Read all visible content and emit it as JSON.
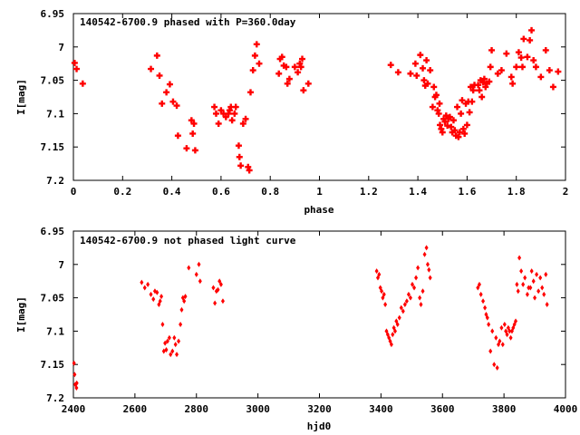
{
  "chart_data": [
    {
      "type": "scatter",
      "title": "140542-6700.9 phased with P=360.0day",
      "xlabel": "phase",
      "ylabel": "I[mag]",
      "xlim": [
        0,
        2
      ],
      "ylim": [
        7.2,
        6.95
      ],
      "y_inverted": true,
      "x_ticks": [
        "0",
        "0.2",
        "0.4",
        "0.6",
        "0.8",
        "1",
        "1.2",
        "1.4",
        "1.6",
        "1.8",
        "2"
      ],
      "x_tick_values": [
        0,
        0.2,
        0.4,
        0.6,
        0.8,
        1.0,
        1.2,
        1.4,
        1.6,
        1.8,
        2.0
      ],
      "y_ticks": [
        "6.95",
        "7",
        "7.05",
        "7.1",
        "7.15",
        "7.2"
      ],
      "y_tick_values": [
        6.95,
        7.0,
        7.05,
        7.1,
        7.15,
        7.2
      ],
      "marker": "star",
      "color": "#ff0000",
      "grid": false,
      "points": [
        [
          0.005,
          7.024
        ],
        [
          0.013,
          7.033
        ],
        [
          0.038,
          7.055
        ],
        [
          0.315,
          7.033
        ],
        [
          0.34,
          7.013
        ],
        [
          0.35,
          7.043
        ],
        [
          0.36,
          7.085
        ],
        [
          0.378,
          7.068
        ],
        [
          0.392,
          7.056
        ],
        [
          0.405,
          7.082
        ],
        [
          0.42,
          7.088
        ],
        [
          0.425,
          7.133
        ],
        [
          0.46,
          7.152
        ],
        [
          0.48,
          7.11
        ],
        [
          0.485,
          7.13
        ],
        [
          0.49,
          7.115
        ],
        [
          0.495,
          7.155
        ],
        [
          0.573,
          7.09
        ],
        [
          0.58,
          7.1
        ],
        [
          0.59,
          7.115
        ],
        [
          0.6,
          7.095
        ],
        [
          0.61,
          7.1
        ],
        [
          0.62,
          7.105
        ],
        [
          0.63,
          7.1
        ],
        [
          0.635,
          7.095
        ],
        [
          0.64,
          7.09
        ],
        [
          0.645,
          7.11
        ],
        [
          0.655,
          7.1
        ],
        [
          0.66,
          7.09
        ],
        [
          0.672,
          7.148
        ],
        [
          0.675,
          7.165
        ],
        [
          0.68,
          7.178
        ],
        [
          0.69,
          7.115
        ],
        [
          0.7,
          7.108
        ],
        [
          0.71,
          7.18
        ],
        [
          0.715,
          7.185
        ],
        [
          0.72,
          7.068
        ],
        [
          0.73,
          7.035
        ],
        [
          0.738,
          7.013
        ],
        [
          0.745,
          6.996
        ],
        [
          0.755,
          7.025
        ],
        [
          0.835,
          7.04
        ],
        [
          0.84,
          7.018
        ],
        [
          0.848,
          7.015
        ],
        [
          0.855,
          7.028
        ],
        [
          0.865,
          7.03
        ],
        [
          0.87,
          7.055
        ],
        [
          0.878,
          7.048
        ],
        [
          0.9,
          7.03
        ],
        [
          0.912,
          7.038
        ],
        [
          0.92,
          7.025
        ],
        [
          0.925,
          7.03
        ],
        [
          0.93,
          7.018
        ],
        [
          0.935,
          7.065
        ],
        [
          0.955,
          7.055
        ],
        [
          1.29,
          7.027
        ],
        [
          1.32,
          7.038
        ],
        [
          1.37,
          7.04
        ],
        [
          1.39,
          7.025
        ],
        [
          1.395,
          7.043
        ],
        [
          1.41,
          7.012
        ],
        [
          1.42,
          7.032
        ],
        [
          1.425,
          7.05
        ],
        [
          1.43,
          7.058
        ],
        [
          1.435,
          7.02
        ],
        [
          1.44,
          7.055
        ],
        [
          1.45,
          7.035
        ],
        [
          1.46,
          7.09
        ],
        [
          1.465,
          7.06
        ],
        [
          1.47,
          7.075
        ],
        [
          1.475,
          7.072
        ],
        [
          1.48,
          7.095
        ],
        [
          1.485,
          7.1
        ],
        [
          1.488,
          7.085
        ],
        [
          1.49,
          7.117
        ],
        [
          1.495,
          7.123
        ],
        [
          1.5,
          7.128
        ],
        [
          1.505,
          7.108
        ],
        [
          1.51,
          7.112
        ],
        [
          1.515,
          7.103
        ],
        [
          1.52,
          7.118
        ],
        [
          1.525,
          7.108
        ],
        [
          1.53,
          7.105
        ],
        [
          1.535,
          7.12
        ],
        [
          1.54,
          7.128
        ],
        [
          1.545,
          7.11
        ],
        [
          1.55,
          7.125
        ],
        [
          1.555,
          7.133
        ],
        [
          1.56,
          7.09
        ],
        [
          1.565,
          7.135
        ],
        [
          1.57,
          7.128
        ],
        [
          1.575,
          7.1
        ],
        [
          1.58,
          7.08
        ],
        [
          1.585,
          7.123
        ],
        [
          1.59,
          7.13
        ],
        [
          1.595,
          7.085
        ],
        [
          1.6,
          7.117
        ],
        [
          1.605,
          7.082
        ],
        [
          1.61,
          7.098
        ],
        [
          1.615,
          7.06
        ],
        [
          1.62,
          7.082
        ],
        [
          1.625,
          7.065
        ],
        [
          1.63,
          7.057
        ],
        [
          1.645,
          7.057
        ],
        [
          1.65,
          7.065
        ],
        [
          1.655,
          7.05
        ],
        [
          1.66,
          7.075
        ],
        [
          1.665,
          7.053
        ],
        [
          1.67,
          7.048
        ],
        [
          1.675,
          7.06
        ],
        [
          1.68,
          7.055
        ],
        [
          1.69,
          7.052
        ],
        [
          1.695,
          7.03
        ],
        [
          1.7,
          7.005
        ],
        [
          1.725,
          7.04
        ],
        [
          1.74,
          7.035
        ],
        [
          1.76,
          7.01
        ],
        [
          1.78,
          7.045
        ],
        [
          1.785,
          7.055
        ],
        [
          1.8,
          7.03
        ],
        [
          1.81,
          7.008
        ],
        [
          1.82,
          7.016
        ],
        [
          1.825,
          7.03
        ],
        [
          1.83,
          6.988
        ],
        [
          1.845,
          7.015
        ],
        [
          1.855,
          6.99
        ],
        [
          1.862,
          6.975
        ],
        [
          1.87,
          7.02
        ],
        [
          1.88,
          7.03
        ],
        [
          1.9,
          7.045
        ],
        [
          1.92,
          7.005
        ],
        [
          1.935,
          7.035
        ],
        [
          1.95,
          7.06
        ],
        [
          1.97,
          7.037
        ]
      ]
    },
    {
      "type": "scatter",
      "title": "140542-6700.9 not phased light curve",
      "xlabel": "hjd0",
      "ylabel": "I[mag]",
      "xlim": [
        2400,
        4000
      ],
      "ylim": [
        7.2,
        6.95
      ],
      "y_inverted": true,
      "x_ticks": [
        "2400",
        "2600",
        "2800",
        "3000",
        "3200",
        "3400",
        "3600",
        "3800",
        "4000"
      ],
      "x_tick_values": [
        2400,
        2600,
        2800,
        3000,
        3200,
        3400,
        3600,
        3800,
        4000
      ],
      "y_ticks": [
        "6.95",
        "7",
        "7.05",
        "7.1",
        "7.15",
        "7.2"
      ],
      "y_tick_values": [
        6.95,
        7.0,
        7.05,
        7.1,
        7.15,
        7.2
      ],
      "marker": "diamond",
      "color": "#ff0000",
      "grid": false,
      "points": [
        [
          2402,
          7.148
        ],
        [
          2404,
          7.165
        ],
        [
          2406,
          7.18
        ],
        [
          2410,
          7.185
        ],
        [
          2411,
          7.178
        ],
        [
          2622,
          7.027
        ],
        [
          2632,
          7.035
        ],
        [
          2642,
          7.03
        ],
        [
          2652,
          7.045
        ],
        [
          2660,
          7.052
        ],
        [
          2665,
          7.04
        ],
        [
          2672,
          7.042
        ],
        [
          2678,
          7.06
        ],
        [
          2682,
          7.055
        ],
        [
          2686,
          7.048
        ],
        [
          2690,
          7.09
        ],
        [
          2694,
          7.13
        ],
        [
          2698,
          7.118
        ],
        [
          2702,
          7.128
        ],
        [
          2706,
          7.115
        ],
        [
          2712,
          7.11
        ],
        [
          2716,
          7.135
        ],
        [
          2722,
          7.13
        ],
        [
          2728,
          7.11
        ],
        [
          2732,
          7.12
        ],
        [
          2736,
          7.135
        ],
        [
          2742,
          7.115
        ],
        [
          2748,
          7.09
        ],
        [
          2752,
          7.068
        ],
        [
          2756,
          7.05
        ],
        [
          2760,
          7.055
        ],
        [
          2764,
          7.048
        ],
        [
          2775,
          7.005
        ],
        [
          2800,
          7.015
        ],
        [
          2808,
          7.0
        ],
        [
          2812,
          7.025
        ],
        [
          2855,
          7.035
        ],
        [
          2860,
          7.058
        ],
        [
          2865,
          7.04
        ],
        [
          2870,
          7.038
        ],
        [
          2875,
          7.025
        ],
        [
          2880,
          7.03
        ],
        [
          2886,
          7.055
        ],
        [
          3386,
          7.01
        ],
        [
          3390,
          7.02
        ],
        [
          3394,
          7.015
        ],
        [
          3398,
          7.035
        ],
        [
          3402,
          7.04
        ],
        [
          3406,
          7.05
        ],
        [
          3410,
          7.045
        ],
        [
          3414,
          7.06
        ],
        [
          3418,
          7.1
        ],
        [
          3422,
          7.105
        ],
        [
          3426,
          7.11
        ],
        [
          3430,
          7.115
        ],
        [
          3434,
          7.12
        ],
        [
          3438,
          7.105
        ],
        [
          3442,
          7.095
        ],
        [
          3446,
          7.1
        ],
        [
          3450,
          7.085
        ],
        [
          3454,
          7.09
        ],
        [
          3460,
          7.08
        ],
        [
          3466,
          7.065
        ],
        [
          3472,
          7.07
        ],
        [
          3478,
          7.06
        ],
        [
          3484,
          7.055
        ],
        [
          3490,
          7.045
        ],
        [
          3496,
          7.05
        ],
        [
          3502,
          7.03
        ],
        [
          3508,
          7.035
        ],
        [
          3514,
          7.02
        ],
        [
          3520,
          7.005
        ],
        [
          3526,
          7.05
        ],
        [
          3530,
          7.06
        ],
        [
          3536,
          7.04
        ],
        [
          3542,
          6.985
        ],
        [
          3548,
          6.975
        ],
        [
          3552,
          7.0
        ],
        [
          3556,
          7.008
        ],
        [
          3560,
          7.02
        ],
        [
          3715,
          7.035
        ],
        [
          3720,
          7.03
        ],
        [
          3725,
          7.045
        ],
        [
          3732,
          7.055
        ],
        [
          3738,
          7.065
        ],
        [
          3742,
          7.075
        ],
        [
          3746,
          7.08
        ],
        [
          3750,
          7.09
        ],
        [
          3756,
          7.13
        ],
        [
          3762,
          7.1
        ],
        [
          3768,
          7.15
        ],
        [
          3774,
          7.11
        ],
        [
          3778,
          7.155
        ],
        [
          3782,
          7.12
        ],
        [
          3786,
          7.115
        ],
        [
          3792,
          7.095
        ],
        [
          3796,
          7.12
        ],
        [
          3802,
          7.09
        ],
        [
          3806,
          7.1
        ],
        [
          3810,
          7.105
        ],
        [
          3814,
          7.095
        ],
        [
          3818,
          7.1
        ],
        [
          3822,
          7.11
        ],
        [
          3826,
          7.1
        ],
        [
          3830,
          7.095
        ],
        [
          3834,
          7.09
        ],
        [
          3838,
          7.085
        ],
        [
          3842,
          7.03
        ],
        [
          3846,
          7.04
        ],
        [
          3850,
          6.99
        ],
        [
          3856,
          7.01
        ],
        [
          3862,
          7.03
        ],
        [
          3868,
          7.02
        ],
        [
          3876,
          7.045
        ],
        [
          3880,
          7.035
        ],
        [
          3886,
          7.035
        ],
        [
          3890,
          7.01
        ],
        [
          3896,
          7.025
        ],
        [
          3900,
          7.05
        ],
        [
          3906,
          7.015
        ],
        [
          3912,
          7.04
        ],
        [
          3918,
          7.02
        ],
        [
          3924,
          7.035
        ],
        [
          3930,
          7.045
        ],
        [
          3936,
          7.015
        ],
        [
          3940,
          7.06
        ]
      ]
    }
  ]
}
